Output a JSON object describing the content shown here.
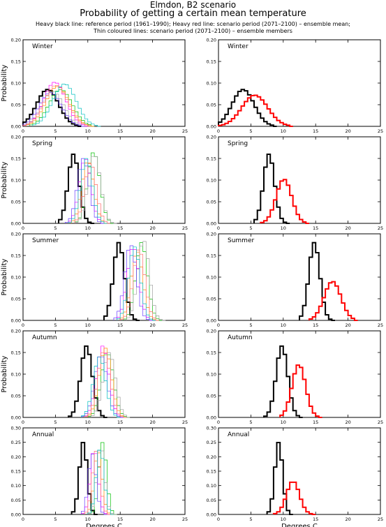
{
  "header": {
    "title": "Elmdon, B2 scenario",
    "subtitle": "Probability of getting a certain mean temperature",
    "legend_line1": "Heavy black line: reference period (1961–1990); Heavy red line: scenario period (2071–2100) – ensemble mean;",
    "legend_line2": "Thin coloured lines: scenario period (2071–2100) – ensemble members"
  },
  "colors": {
    "reference": "#000000",
    "ensemble_mean": "#ff0000",
    "members": [
      "#00c000",
      "#ff00ff",
      "#ff8c00",
      "#a0a0a0",
      "#6a3dff",
      "#ff6b6b",
      "#00bfbf"
    ]
  },
  "chart_data": [
    {
      "type": "line",
      "title": "Winter",
      "ylabel": "Probability",
      "xlabel": "",
      "xlim": [
        0,
        25
      ],
      "ylim": [
        0,
        0.2
      ],
      "xticks": [
        "0",
        "5",
        "10",
        "15",
        "20",
        "25"
      ],
      "yticks": [
        "0.00",
        "0.05",
        "0.10",
        "0.15",
        "0.20"
      ],
      "series": [
        {
          "role": "reference",
          "mean": 3.8,
          "sd": 1.7,
          "peak": 0.085
        },
        {
          "role": "member",
          "mean": 5.8,
          "sd": 1.8,
          "peak": 0.085
        },
        {
          "role": "member",
          "mean": 4.9,
          "sd": 1.7,
          "peak": 0.102
        },
        {
          "role": "member",
          "mean": 5.3,
          "sd": 1.8,
          "peak": 0.092
        },
        {
          "role": "member",
          "mean": 4.6,
          "sd": 1.7,
          "peak": 0.08
        },
        {
          "role": "member",
          "mean": 4.2,
          "sd": 1.7,
          "peak": 0.078
        },
        {
          "role": "member",
          "mean": 5.1,
          "sd": 1.8,
          "peak": 0.095
        },
        {
          "role": "member",
          "mean": 6.4,
          "sd": 1.8,
          "peak": 0.098
        }
      ]
    },
    {
      "type": "line",
      "title": "Winter",
      "xlabel": "",
      "xlim": [
        0,
        25
      ],
      "ylim": [
        0,
        0.2
      ],
      "xticks": [
        "0",
        "5",
        "10",
        "15",
        "20",
        "25"
      ],
      "yticks": [
        "0.00",
        "0.05",
        "0.10",
        "0.15",
        "0.20"
      ],
      "series": [
        {
          "role": "reference",
          "mean": 3.8,
          "sd": 1.7,
          "peak": 0.085
        },
        {
          "role": "ensemble_mean",
          "mean": 5.6,
          "sd": 2.0,
          "peak": 0.072
        }
      ]
    },
    {
      "type": "line",
      "title": "Spring",
      "ylabel": "Probability",
      "xlabel": "",
      "xlim": [
        0,
        25
      ],
      "ylim": [
        0,
        0.2
      ],
      "xticks": [
        "0",
        "5",
        "10",
        "15",
        "20",
        "25"
      ],
      "yticks": [
        "0.00",
        "0.05",
        "0.10",
        "0.15",
        "0.20"
      ],
      "series": [
        {
          "role": "reference",
          "mean": 7.8,
          "sd": 0.85,
          "peak": 0.16
        },
        {
          "role": "member",
          "mean": 10.9,
          "sd": 0.95,
          "peak": 0.165
        },
        {
          "role": "member",
          "mean": 9.6,
          "sd": 0.9,
          "peak": 0.15
        },
        {
          "role": "member",
          "mean": 10.0,
          "sd": 0.9,
          "peak": 0.145
        },
        {
          "role": "member",
          "mean": 11.0,
          "sd": 0.95,
          "peak": 0.16
        },
        {
          "role": "member",
          "mean": 9.3,
          "sd": 0.9,
          "peak": 0.15
        },
        {
          "role": "member",
          "mean": 10.4,
          "sd": 0.9,
          "peak": 0.14
        },
        {
          "role": "member",
          "mean": 9.8,
          "sd": 0.9,
          "peak": 0.15
        }
      ]
    },
    {
      "type": "line",
      "title": "Spring",
      "xlabel": "",
      "xlim": [
        0,
        25
      ],
      "ylim": [
        0,
        0.2
      ],
      "xticks": [
        "0",
        "5",
        "10",
        "15",
        "20",
        "25"
      ],
      "yticks": [
        "0.00",
        "0.05",
        "0.10",
        "0.15",
        "0.20"
      ],
      "series": [
        {
          "role": "reference",
          "mean": 7.8,
          "sd": 0.85,
          "peak": 0.16
        },
        {
          "role": "ensemble_mean",
          "mean": 10.1,
          "sd": 1.2,
          "peak": 0.102
        }
      ]
    },
    {
      "type": "line",
      "title": "Summer",
      "ylabel": "Probability",
      "xlabel": "",
      "xlim": [
        0,
        25
      ],
      "ylim": [
        0,
        0.2
      ],
      "xticks": [
        "0",
        "5",
        "10",
        "15",
        "20",
        "25"
      ],
      "yticks": [
        "0.00",
        "0.05",
        "0.10",
        "0.15",
        "0.20"
      ],
      "series": [
        {
          "role": "reference",
          "mean": 14.8,
          "sd": 0.85,
          "peak": 0.18
        },
        {
          "role": "member",
          "mean": 18.3,
          "sd": 0.9,
          "peak": 0.18
        },
        {
          "role": "member",
          "mean": 17.0,
          "sd": 0.9,
          "peak": 0.17
        },
        {
          "role": "member",
          "mean": 17.6,
          "sd": 0.9,
          "peak": 0.16
        },
        {
          "role": "member",
          "mean": 18.6,
          "sd": 0.9,
          "peak": 0.185
        },
        {
          "role": "member",
          "mean": 16.6,
          "sd": 0.9,
          "peak": 0.175
        },
        {
          "role": "member",
          "mean": 17.9,
          "sd": 0.9,
          "peak": 0.165
        },
        {
          "role": "member",
          "mean": 17.2,
          "sd": 0.9,
          "peak": 0.17
        }
      ]
    },
    {
      "type": "line",
      "title": "Summer",
      "xlabel": "",
      "xlim": [
        0,
        25
      ],
      "ylim": [
        0,
        0.2
      ],
      "xticks": [
        "0",
        "5",
        "10",
        "15",
        "20",
        "25"
      ],
      "yticks": [
        "0.00",
        "0.05",
        "0.10",
        "0.15",
        "0.20"
      ],
      "series": [
        {
          "role": "reference",
          "mean": 14.8,
          "sd": 0.85,
          "peak": 0.18
        },
        {
          "role": "ensemble_mean",
          "mean": 17.6,
          "sd": 1.3,
          "peak": 0.09
        }
      ]
    },
    {
      "type": "line",
      "title": "Autumn",
      "ylabel": "Probability",
      "xlabel": "",
      "xlim": [
        0,
        25
      ],
      "ylim": [
        0,
        0.2
      ],
      "xticks": [
        "0",
        "5",
        "10",
        "15",
        "20",
        "25"
      ],
      "yticks": [
        "0.00",
        "0.05",
        "0.10",
        "0.15",
        "0.20"
      ],
      "series": [
        {
          "role": "reference",
          "mean": 9.8,
          "sd": 0.9,
          "peak": 0.165
        },
        {
          "role": "member",
          "mean": 13.0,
          "sd": 0.95,
          "peak": 0.15
        },
        {
          "role": "member",
          "mean": 12.3,
          "sd": 0.95,
          "peak": 0.165
        },
        {
          "role": "member",
          "mean": 12.7,
          "sd": 0.95,
          "peak": 0.16
        },
        {
          "role": "member",
          "mean": 13.3,
          "sd": 0.95,
          "peak": 0.15
        },
        {
          "role": "member",
          "mean": 12.0,
          "sd": 0.95,
          "peak": 0.145
        },
        {
          "role": "member",
          "mean": 12.5,
          "sd": 0.95,
          "peak": 0.155
        },
        {
          "role": "member",
          "mean": 11.8,
          "sd": 0.95,
          "peak": 0.14
        }
      ]
    },
    {
      "type": "line",
      "title": "Autumn",
      "xlabel": "",
      "xlim": [
        0,
        25
      ],
      "ylim": [
        0,
        0.2
      ],
      "xticks": [
        "0",
        "5",
        "10",
        "15",
        "20",
        "25"
      ],
      "yticks": [
        "0.00",
        "0.05",
        "0.10",
        "0.15",
        "0.20"
      ],
      "series": [
        {
          "role": "reference",
          "mean": 9.8,
          "sd": 0.9,
          "peak": 0.165
        },
        {
          "role": "ensemble_mean",
          "mean": 12.4,
          "sd": 1.05,
          "peak": 0.122
        }
      ]
    },
    {
      "type": "line",
      "title": "Annual",
      "xlabel": "Degrees C",
      "xlim": [
        0,
        25
      ],
      "ylim": [
        0,
        0.3
      ],
      "xticks": [
        "0",
        "5",
        "10",
        "15",
        "20",
        "25"
      ],
      "yticks": [
        "0.00",
        "0.05",
        "0.10",
        "0.15",
        "0.20",
        "0.25",
        "0.30"
      ],
      "series": [
        {
          "role": "reference",
          "mean": 9.3,
          "sd": 0.6,
          "peak": 0.25
        },
        {
          "role": "member",
          "mean": 12.3,
          "sd": 0.6,
          "peak": 0.25
        },
        {
          "role": "member",
          "mean": 11.0,
          "sd": 0.6,
          "peak": 0.23
        },
        {
          "role": "member",
          "mean": 11.6,
          "sd": 0.6,
          "peak": 0.22
        },
        {
          "role": "member",
          "mean": 12.0,
          "sd": 0.6,
          "peak": 0.24
        },
        {
          "role": "member",
          "mean": 10.7,
          "sd": 0.6,
          "peak": 0.21
        },
        {
          "role": "member",
          "mean": 11.3,
          "sd": 0.6,
          "peak": 0.22
        },
        {
          "role": "member",
          "mean": 11.9,
          "sd": 0.6,
          "peak": 0.23
        }
      ]
    },
    {
      "type": "line",
      "title": "Annual",
      "xlabel": "Degrees C",
      "xlim": [
        0,
        25
      ],
      "ylim": [
        0,
        0.3
      ],
      "xticks": [
        "0",
        "5",
        "10",
        "15",
        "20",
        "25"
      ],
      "yticks": [
        "0.00",
        "0.05",
        "0.10",
        "0.15",
        "0.20",
        "0.25",
        "0.30"
      ],
      "series": [
        {
          "role": "reference",
          "mean": 9.3,
          "sd": 0.6,
          "peak": 0.25
        },
        {
          "role": "ensemble_mean",
          "mean": 11.5,
          "sd": 1.0,
          "peak": 0.115
        }
      ]
    }
  ]
}
